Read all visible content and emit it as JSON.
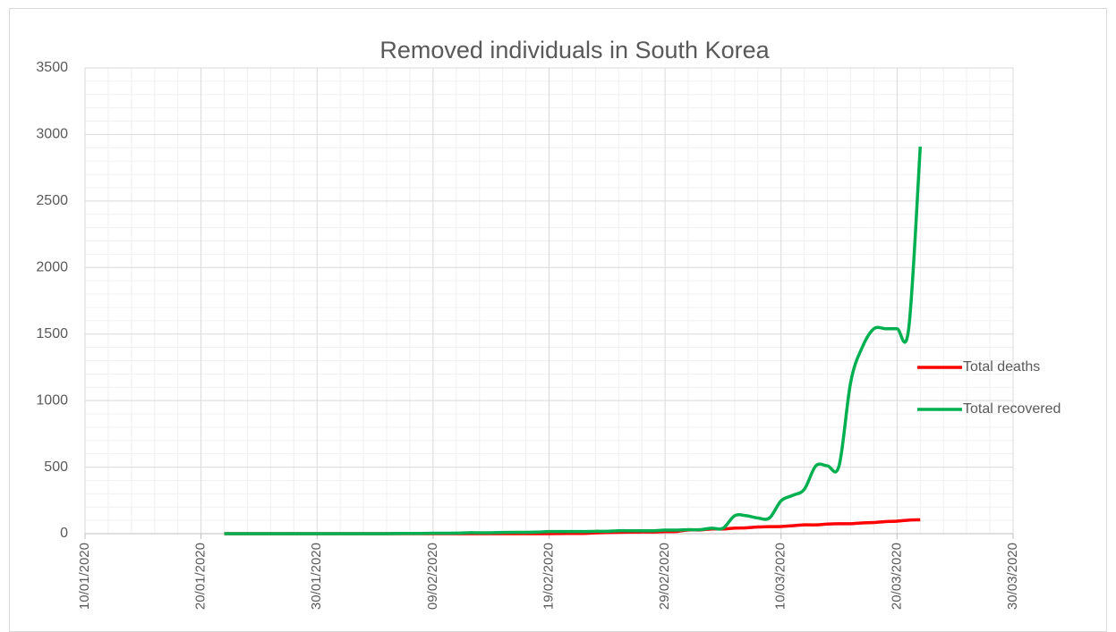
{
  "chart_data": {
    "type": "line",
    "title": "Removed individuals in South Korea",
    "x": [
      "22/01/2020",
      "23/01/2020",
      "24/01/2020",
      "25/01/2020",
      "26/01/2020",
      "27/01/2020",
      "28/01/2020",
      "29/01/2020",
      "30/01/2020",
      "31/01/2020",
      "01/02/2020",
      "02/02/2020",
      "03/02/2020",
      "04/02/2020",
      "05/02/2020",
      "06/02/2020",
      "07/02/2020",
      "08/02/2020",
      "09/02/2020",
      "10/02/2020",
      "11/02/2020",
      "12/02/2020",
      "13/02/2020",
      "14/02/2020",
      "15/02/2020",
      "16/02/2020",
      "17/02/2020",
      "18/02/2020",
      "19/02/2020",
      "20/02/2020",
      "21/02/2020",
      "22/02/2020",
      "23/02/2020",
      "24/02/2020",
      "25/02/2020",
      "26/02/2020",
      "27/02/2020",
      "28/02/2020",
      "29/02/2020",
      "01/03/2020",
      "02/03/2020",
      "03/03/2020",
      "04/03/2020",
      "05/03/2020",
      "06/03/2020",
      "07/03/2020",
      "08/03/2020",
      "09/03/2020",
      "10/03/2020",
      "11/03/2020",
      "12/03/2020",
      "13/03/2020",
      "14/03/2020",
      "15/03/2020",
      "16/03/2020",
      "17/03/2020",
      "18/03/2020",
      "19/03/2020",
      "20/03/2020",
      "21/03/2020",
      "22/03/2020"
    ],
    "series": [
      {
        "name": "Total deaths",
        "color": "#ff0000",
        "values": [
          0,
          0,
          0,
          0,
          0,
          0,
          0,
          0,
          0,
          0,
          0,
          0,
          0,
          0,
          0,
          0,
          0,
          0,
          0,
          0,
          0,
          0,
          0,
          0,
          0,
          0,
          0,
          0,
          0,
          1,
          2,
          2,
          6,
          8,
          10,
          12,
          13,
          13,
          16,
          17,
          28,
          28,
          35,
          35,
          42,
          44,
          50,
          53,
          54,
          60,
          66,
          66,
          72,
          75,
          75,
          81,
          84,
          91,
          94,
          102,
          104
        ]
      },
      {
        "name": "Total recovered",
        "color": "#00b050",
        "values": [
          0,
          0,
          0,
          0,
          0,
          0,
          0,
          0,
          0,
          0,
          0,
          0,
          0,
          0,
          0,
          1,
          2,
          2,
          3,
          3,
          4,
          7,
          7,
          7,
          9,
          10,
          10,
          12,
          16,
          16,
          16,
          16,
          18,
          18,
          22,
          22,
          22,
          22,
          27,
          27,
          30,
          30,
          41,
          41,
          135,
          135,
          118,
          118,
          247,
          288,
          333,
          510,
          510,
          510,
          1137,
          1401,
          1540,
          1540,
          1540,
          1540,
          2909
        ]
      }
    ],
    "xlim": [
      "10/01/2020",
      "30/03/2020"
    ],
    "xticks": [
      "10/01/2020",
      "20/01/2020",
      "30/01/2020",
      "09/02/2020",
      "19/02/2020",
      "29/02/2020",
      "10/03/2020",
      "20/03/2020",
      "30/03/2020"
    ],
    "ylim": [
      0,
      3500
    ],
    "yticks": [
      0,
      500,
      1000,
      1500,
      2000,
      2500,
      3000,
      3500
    ],
    "grid": true,
    "legend": "right"
  }
}
